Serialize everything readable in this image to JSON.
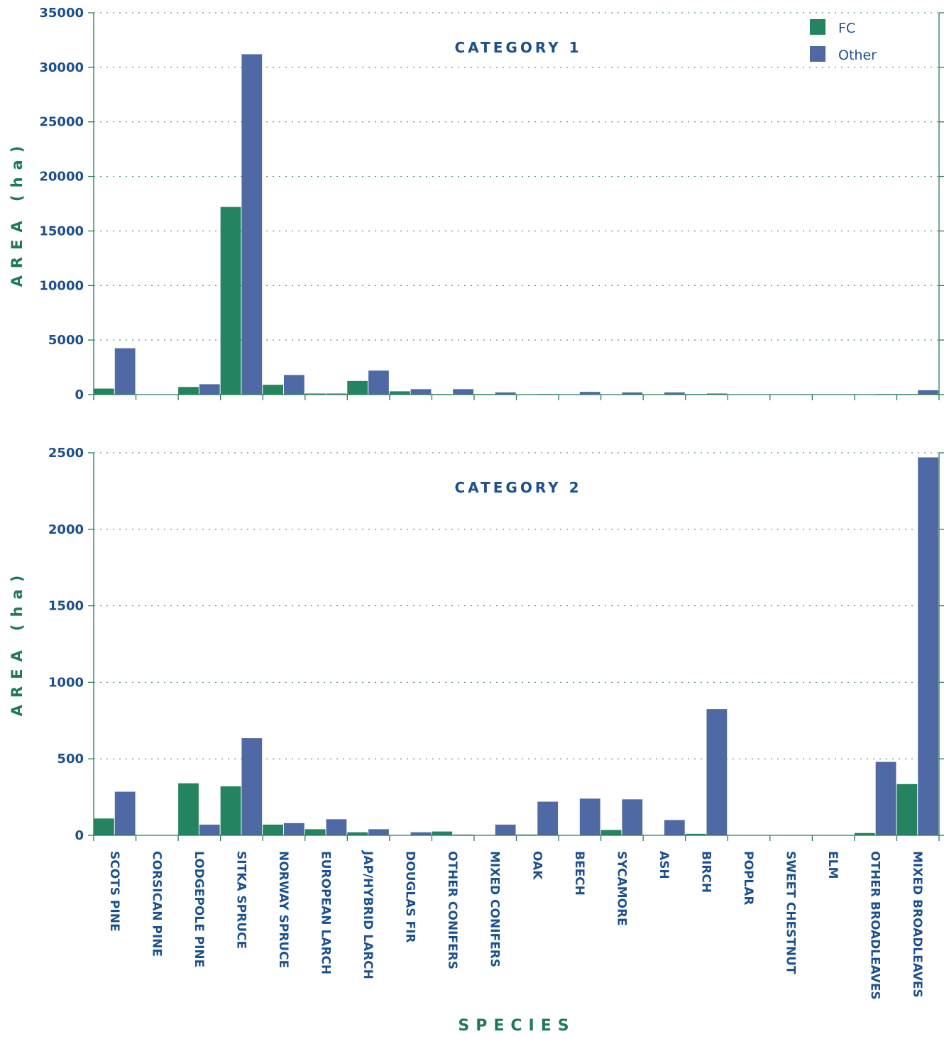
{
  "colors": {
    "fc": "#24845f",
    "other": "#4e69a4",
    "axis": "#2a7a5c",
    "text": "#1c4f8c",
    "label": "#1e7a55"
  },
  "legend": {
    "fc": "FC",
    "other": "Other"
  },
  "y_axis_label": "AREA (ha)",
  "x_axis_label": "SPECIES",
  "chart_data": [
    {
      "type": "bar",
      "title": "CATEGORY 1",
      "ylabel": "AREA (ha)",
      "xlabel": "",
      "ylim": [
        0,
        35000
      ],
      "yticks": [
        0,
        5000,
        10000,
        15000,
        20000,
        25000,
        30000,
        35000
      ],
      "grid": true,
      "legend_position": "top-right",
      "categories": [
        "SCOTS PINE",
        "CORSICAN PINE",
        "LODGEPOLE PINE",
        "SITKA SPRUCE",
        "NORWAY SPRUCE",
        "EUROPEAN LARCH",
        "JAP/HYBRID LARCH",
        "DOUGLAS FIR",
        "OTHER CONIFERS",
        "MIXED CONIFERS",
        "OAK",
        "BEECH",
        "SYCAMORE",
        "ASH",
        "BIRCH",
        "POPLAR",
        "SWEET CHESTNUT",
        "ELM",
        "OTHER BROADLEAVES",
        "MIXED BROADLEAVES"
      ],
      "series": [
        {
          "name": "FC",
          "values": [
            550,
            0,
            700,
            17200,
            900,
            100,
            1250,
            300,
            50,
            50,
            20,
            30,
            30,
            20,
            50,
            10,
            10,
            10,
            30,
            50
          ]
        },
        {
          "name": "Other",
          "values": [
            4250,
            0,
            950,
            31200,
            1800,
            100,
            2200,
            500,
            500,
            200,
            50,
            250,
            200,
            200,
            100,
            20,
            20,
            20,
            50,
            400
          ]
        }
      ]
    },
    {
      "type": "bar",
      "title": "CATEGORY 2",
      "ylabel": "AREA (ha)",
      "xlabel": "SPECIES",
      "ylim": [
        0,
        2500
      ],
      "yticks": [
        0,
        500,
        1000,
        1500,
        2000,
        2500
      ],
      "grid": true,
      "categories": [
        "SCOTS PINE",
        "CORSICAN PINE",
        "LODGEPOLE PINE",
        "SITKA SPRUCE",
        "NORWAY SPRUCE",
        "EUROPEAN LARCH",
        "JAP/HYBRID LARCH",
        "DOUGLAS FIR",
        "OTHER CONIFERS",
        "MIXED CONIFERS",
        "OAK",
        "BEECH",
        "SYCAMORE",
        "ASH",
        "BIRCH",
        "POPLAR",
        "SWEET CHESTNUT",
        "ELM",
        "OTHER BROADLEAVES",
        "MIXED BROADLEAVES"
      ],
      "series": [
        {
          "name": "FC",
          "values": [
            110,
            0,
            340,
            320,
            70,
            40,
            20,
            0,
            25,
            0,
            5,
            0,
            35,
            0,
            10,
            0,
            0,
            0,
            15,
            335
          ]
        },
        {
          "name": "Other",
          "values": [
            285,
            0,
            70,
            635,
            80,
            105,
            40,
            20,
            5,
            70,
            220,
            240,
            235,
            100,
            825,
            0,
            0,
            0,
            480,
            2470
          ]
        }
      ]
    }
  ]
}
